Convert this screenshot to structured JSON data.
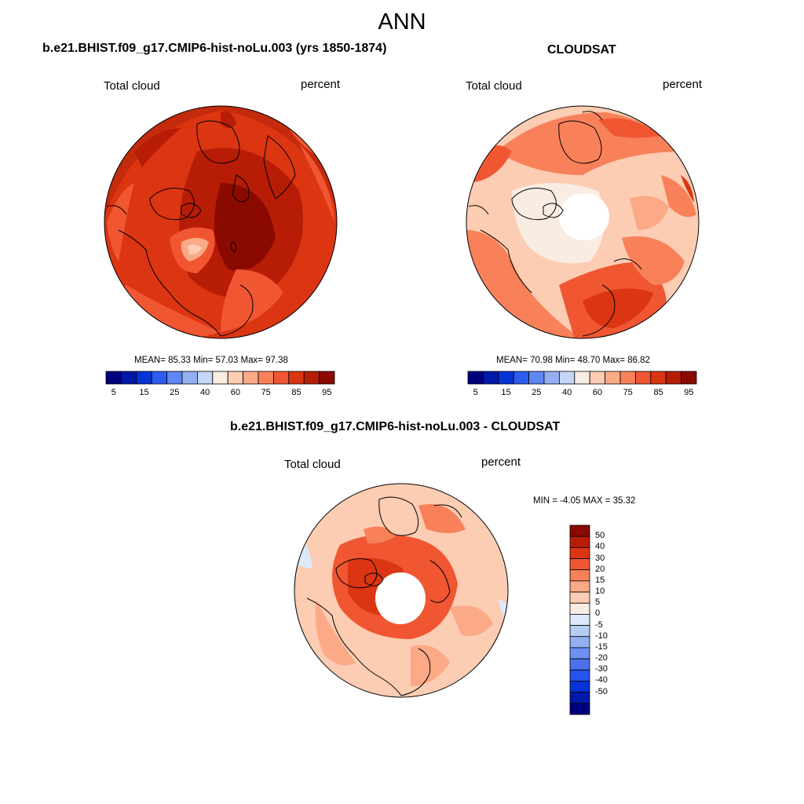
{
  "figure": {
    "title": "ANN"
  },
  "panels": [
    {
      "id": "model",
      "title": "b.e21.BHIST.f09_g17.CMIP6-hist-noLu.003 (yrs 1850-1874)",
      "left_label": "Total cloud",
      "right_label": "percent",
      "stats": "MEAN=  85.33  Min=  57.03  Max=  97.38"
    },
    {
      "id": "obs",
      "title": "CLOUDSAT",
      "left_label": "Total cloud",
      "right_label": "percent",
      "stats": "MEAN=  70.98  Min=  48.70  Max=  86.82"
    },
    {
      "id": "diff",
      "title": "b.e21.BHIST.f09_g17.CMIP6-hist-noLu.003 - CLOUDSAT",
      "left_label": "Total cloud",
      "right_label": "percent",
      "stats": "MIN =  -4.05 MAX =  35.32"
    }
  ],
  "colorbar_abs": {
    "colors": [
      "#00007f",
      "#0019a8",
      "#0633d6",
      "#2d5cf0",
      "#5f86f2",
      "#94b0f3",
      "#c6d6f7",
      "#f9ece3",
      "#fcccb3",
      "#fba986",
      "#f8815a",
      "#f05632",
      "#dc3512",
      "#b71d06",
      "#8b0a00"
    ],
    "tick_labels": [
      "5",
      "15",
      "25",
      "40",
      "60",
      "75",
      "85",
      "95"
    ]
  },
  "colorbar_diff": {
    "colors": [
      "#8b0a00",
      "#b71d06",
      "#dc3512",
      "#f05632",
      "#f8815a",
      "#fba986",
      "#fcccb3",
      "#f9ece3",
      "#dde9f8",
      "#b5ccf3",
      "#94b0f3",
      "#6f90f2",
      "#4a72ef",
      "#2553ec",
      "#0633d6",
      "#0019a8",
      "#00007f"
    ],
    "tick_labels": [
      "50",
      "40",
      "30",
      "20",
      "15",
      "10",
      "5",
      "0",
      "-5",
      "-10",
      "-15",
      "-20",
      "-30",
      "-40",
      "-50"
    ]
  },
  "map_data": {
    "projection": "north polar stereographic",
    "variable": "Total cloud",
    "units": "percent",
    "season": "ANN",
    "model_mean": 85.33,
    "model_min": 57.03,
    "model_max": 97.38,
    "obs_mean": 70.98,
    "obs_min": 48.7,
    "obs_max": 86.82,
    "diff_min": -4.05,
    "diff_max": 35.32,
    "obs_missing_region": "pole"
  }
}
